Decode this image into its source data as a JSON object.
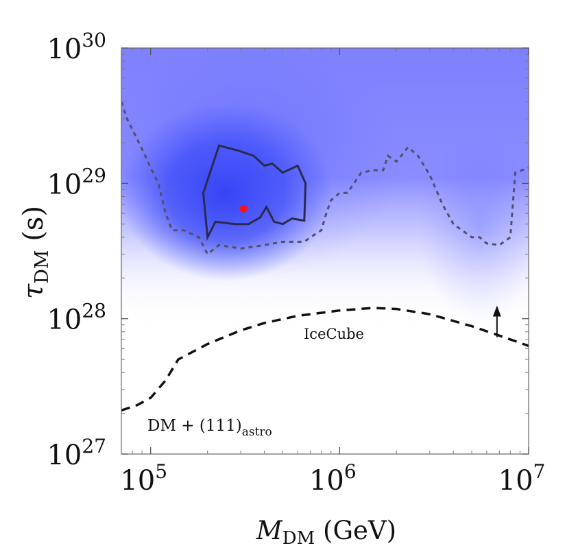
{
  "chart_data": {
    "type": "heatmap",
    "title": "",
    "x_scale": "log",
    "y_scale": "log",
    "xlim": [
      70000,
      10000000
    ],
    "ylim": [
      1e+27,
      1e+30
    ],
    "xlabel": {
      "symbol": "M",
      "subscript": "DM",
      "unit": " (GeV)"
    },
    "ylabel": {
      "symbol": "τ",
      "subscript": "DM",
      "unit": " (s)"
    },
    "x_ticks": [
      {
        "value": 100000,
        "base": "10",
        "exp": "5"
      },
      {
        "value": 1000000,
        "base": "10",
        "exp": "6"
      },
      {
        "value": 10000000,
        "base": "10",
        "exp": "7"
      }
    ],
    "y_ticks": [
      {
        "value": 1e+27,
        "base": "10",
        "exp": "27"
      },
      {
        "value": 1e+28,
        "base": "10",
        "exp": "28"
      },
      {
        "value": 1e+29,
        "base": "10",
        "exp": "29"
      },
      {
        "value": 1e+30,
        "base": "10",
        "exp": "30"
      }
    ],
    "colors": {
      "likelihood": "#2233ee",
      "background_fill": "#8a8cff",
      "contour": "#2a2a50",
      "best_fit": "#ff1111",
      "icecube": "#111111",
      "band": "#505068"
    },
    "best_fit_point": {
      "x": 310000,
      "y": 6.5e+28
    },
    "contour_1sigma": [
      [
        200000,
        4e+28
      ],
      [
        190000,
        8.5e+28
      ],
      [
        230000,
        1.9e+29
      ],
      [
        290000,
        1.75e+29
      ],
      [
        350000,
        1.6e+29
      ],
      [
        400000,
        1.35e+29
      ],
      [
        440000,
        1.4e+29
      ],
      [
        500000,
        1.2e+29
      ],
      [
        600000,
        1.35e+29
      ],
      [
        660000,
        1e+29
      ],
      [
        650000,
        5.3e+28
      ],
      [
        560000,
        5.5e+28
      ],
      [
        500000,
        5e+28
      ],
      [
        450000,
        5.2e+28
      ],
      [
        410000,
        6.7e+28
      ],
      [
        380000,
        5.6e+28
      ],
      [
        330000,
        5e+28
      ],
      [
        280000,
        5e+28
      ],
      [
        220000,
        5.2e+28
      ],
      [
        200000,
        4e+28
      ]
    ],
    "sensitivity_band": [
      [
        70000,
        4e+29
      ],
      [
        75000,
        3e+29
      ],
      [
        90000,
        1.8e+29
      ],
      [
        100000,
        1.3e+29
      ],
      [
        110000,
        1e+29
      ],
      [
        120000,
        6e+28
      ],
      [
        130000,
        4.5e+28
      ],
      [
        150000,
        4.5e+28
      ],
      [
        180000,
        4e+28
      ],
      [
        200000,
        3e+28
      ],
      [
        230000,
        3.5e+28
      ],
      [
        300000,
        3.3e+28
      ],
      [
        400000,
        3.5e+28
      ],
      [
        500000,
        3.7e+28
      ],
      [
        650000,
        3.7e+28
      ],
      [
        700000,
        4e+28
      ],
      [
        800000,
        4.5e+28
      ],
      [
        850000,
        6e+28
      ],
      [
        900000,
        7.5e+28
      ],
      [
        1000000,
        8.5e+28
      ],
      [
        1100000,
        8.5e+28
      ],
      [
        1300000,
        1.2e+29
      ],
      [
        1500000,
        1.25e+29
      ],
      [
        1700000,
        1.25e+29
      ],
      [
        1800000,
        1.6e+29
      ],
      [
        2000000,
        1.45e+29
      ],
      [
        2300000,
        1.85e+29
      ],
      [
        2600000,
        1.6e+29
      ],
      [
        3000000,
        1.15e+29
      ],
      [
        3500000,
        7e+28
      ],
      [
        4000000,
        5e+28
      ],
      [
        5000000,
        4e+28
      ],
      [
        5500000,
        4e+28
      ],
      [
        6000000,
        3.6e+28
      ],
      [
        7000000,
        3.5e+28
      ],
      [
        8000000,
        4e+28
      ],
      [
        8500000,
        1.2e+29
      ],
      [
        10000000,
        1.3e+29
      ]
    ],
    "icecube_limit": [
      [
        70000,
        2.1e+27
      ],
      [
        85000,
        2.3e+27
      ],
      [
        100000,
        2.6e+27
      ],
      [
        120000,
        3.5e+27
      ],
      [
        140000,
        5e+27
      ],
      [
        200000,
        6.5e+27
      ],
      [
        300000,
        8.2e+27
      ],
      [
        400000,
        9.3e+27
      ],
      [
        600000,
        1.05e+28
      ],
      [
        1000000,
        1.15e+28
      ],
      [
        1500000,
        1.2e+28
      ],
      [
        2000000,
        1.18e+28
      ],
      [
        3000000,
        1.08e+28
      ],
      [
        5000000,
        8.8e+27
      ],
      [
        7000000,
        7.5e+27
      ],
      [
        10000000,
        6.3e+27
      ]
    ],
    "icecube_arrow": {
      "x": 6800000,
      "from": 7.3e+27,
      "to": 1.25e+28
    },
    "annotations": {
      "icecube": "IceCube",
      "dataset_main": "DM + (111)",
      "dataset_sub": "astro"
    }
  }
}
